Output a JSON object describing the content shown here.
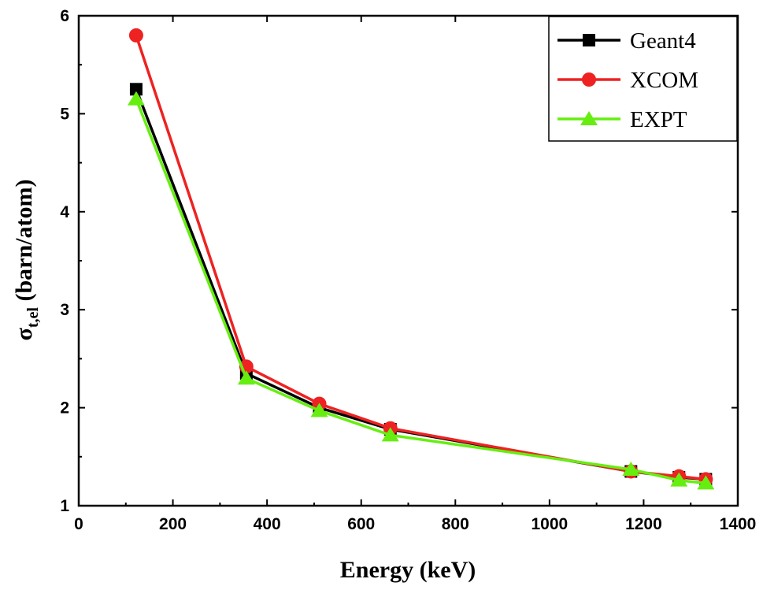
{
  "chart_data": {
    "type": "line",
    "xlabel": "Energy (keV)",
    "ylabel": {
      "main": "σ",
      "subscript": "t,el",
      "rest": " (barn/atom)"
    },
    "xlim": [
      0,
      1400
    ],
    "ylim": [
      1,
      6
    ],
    "xticks": [
      0,
      200,
      400,
      600,
      800,
      1000,
      1200,
      1400
    ],
    "yticks": [
      1,
      2,
      3,
      4,
      5,
      6
    ],
    "grid": false,
    "legend_position": "top-right",
    "series": [
      {
        "name": "Geant4",
        "color": "#000000",
        "marker": "square",
        "x": [
          122,
          356,
          511,
          662,
          1173,
          1275,
          1332
        ],
        "y": [
          5.25,
          2.35,
          2.0,
          1.78,
          1.35,
          1.29,
          1.27
        ]
      },
      {
        "name": "XCOM",
        "color": "#ee2222",
        "marker": "circle",
        "x": [
          122,
          356,
          511,
          662,
          1173,
          1275,
          1332
        ],
        "y": [
          5.8,
          2.42,
          2.04,
          1.79,
          1.35,
          1.3,
          1.27
        ]
      },
      {
        "name": "EXPT",
        "color": "#66ee11",
        "marker": "triangle",
        "x": [
          122,
          356,
          511,
          662,
          1173,
          1275,
          1332
        ],
        "y": [
          5.15,
          2.3,
          1.97,
          1.72,
          1.37,
          1.26,
          1.23
        ]
      }
    ]
  }
}
